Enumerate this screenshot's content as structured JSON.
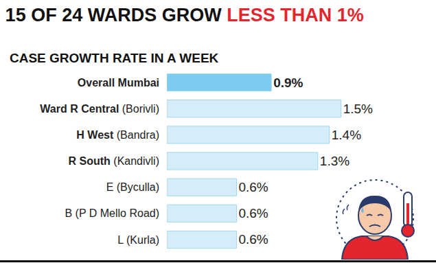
{
  "chart_data": {
    "type": "bar",
    "orientation": "horizontal",
    "title": "15 OF 24 WARDS GROW LESS THAN 1%",
    "subtitle": "CASE GROWTH RATE IN A WEEK",
    "categories": [
      "Overall Mumbai",
      "Ward R Central (Borivli)",
      "H West (Bandra)",
      "R South (Kandivli)",
      "E (Byculla)",
      "B (P D Mello Road)",
      "L (Kurla)"
    ],
    "values": [
      0.9,
      1.5,
      1.4,
      1.3,
      0.6,
      0.6,
      0.6
    ],
    "value_labels": [
      "0.9%",
      "1.5%",
      "1.4%",
      "1.3%",
      "0.6%",
      "0.6%",
      "0.6%"
    ],
    "colors": [
      "#7ccbf0",
      "#d4edf9",
      "#d4edf9",
      "#d4edf9",
      "#d4edf9",
      "#d4edf9",
      "#d4edf9"
    ],
    "xlim": [
      0,
      2.2
    ],
    "data_labels": true,
    "tick_labels": "y",
    "grid": false
  }
}
